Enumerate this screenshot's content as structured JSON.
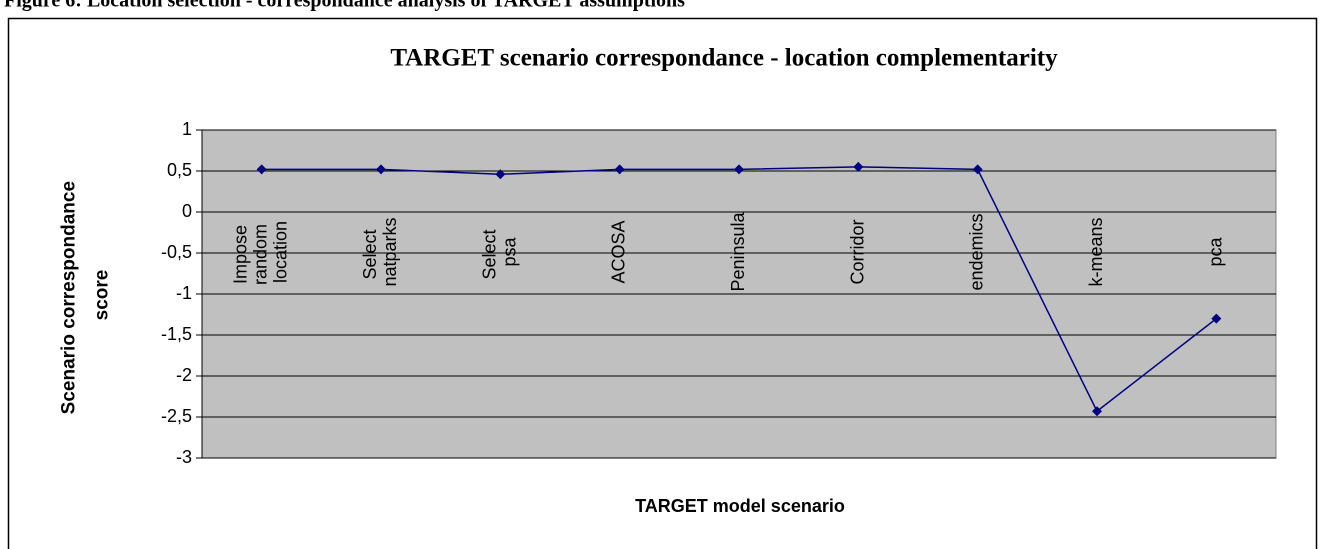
{
  "caption": "Figure 6: Location selection - correspondance analysis of TARGET assumptions",
  "chart_data": {
    "type": "line",
    "title": "TARGET scenario correspondance - location complementarity",
    "x_label": "TARGET model scenario",
    "y_label": "Scenario correspondance score",
    "categories": [
      "Impose random location",
      "Select natparks",
      "Select psa",
      "ACOSA",
      "Peninsula",
      "Corridor",
      "endemics",
      "k-means",
      "pca"
    ],
    "series": [
      {
        "name": "TARGET scenario correspondance",
        "color": "#000080",
        "values": [
          0.52,
          0.52,
          0.46,
          0.52,
          0.52,
          0.55,
          0.52,
          -2.43,
          -1.3
        ]
      }
    ],
    "ylim": [
      -3,
      1
    ],
    "yticks": [
      {
        "value": -3,
        "label": "-3"
      },
      {
        "value": -2.5,
        "label": "-2,5"
      },
      {
        "value": -2,
        "label": "-2"
      },
      {
        "value": -1.5,
        "label": "-1,5"
      },
      {
        "value": -1,
        "label": "-1"
      },
      {
        "value": -0.5,
        "label": "-0,5"
      },
      0,
      {
        "value": 0.5,
        "label": "0,5"
      },
      1
    ],
    "grid": true,
    "plot_background": "#c0c0c0"
  }
}
